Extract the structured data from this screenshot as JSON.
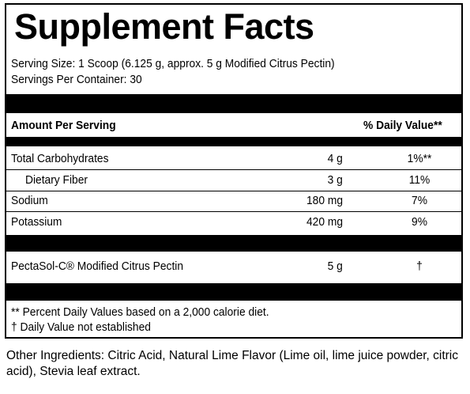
{
  "title": "Supplement Facts",
  "serving_size": "Serving Size:  1 Scoop (6.125 g, approx. 5 g Modified Citrus Pectin)",
  "servings_per_container": "Servings Per Container:  30",
  "header": {
    "amount_label": "Amount Per Serving",
    "dv_label": "% Daily Value**"
  },
  "nutrients": [
    {
      "name": "Total Carbohydrates",
      "amount": "4 g",
      "dv": "1%**"
    },
    {
      "name": "Dietary Fiber",
      "amount": "3 g",
      "dv": "11%"
    },
    {
      "name": "Sodium",
      "amount": "180 mg",
      "dv": "7%"
    },
    {
      "name": "Potassium",
      "amount": "420 mg",
      "dv": "9%"
    }
  ],
  "specialty": {
    "name": "PectaSol-C® Modified Citrus Pectin",
    "amount": "5 g",
    "dv": "†"
  },
  "footnotes": [
    "** Percent Daily Values based on a 2,000 calorie diet.",
    "† Daily Value not established"
  ],
  "other_ingredients": {
    "label": "Other Ingredients:",
    "text": " Citric Acid, Natural Lime Flavor (Lime oil, lime juice powder, citric acid), Stevia leaf extract."
  }
}
